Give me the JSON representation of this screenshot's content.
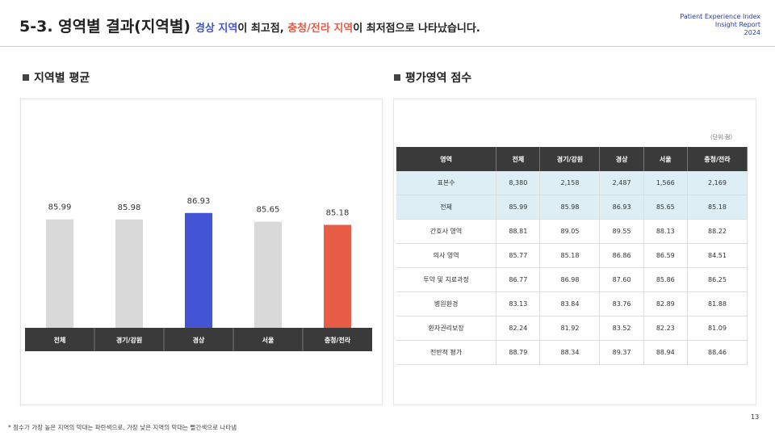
{
  "header": {
    "title": "5-3. 영역별 결과(지역별)",
    "headline": [
      "경상 지역",
      "이 최고점, ",
      "충청/전라 지역",
      "이 최저점으로 나타났습니다."
    ],
    "brand": [
      "Patient Experience Index",
      "Insight Report",
      "2024"
    ]
  },
  "left_section": {
    "title": "지역별 평균"
  },
  "chart_data": {
    "type": "bar",
    "categories": [
      "전체",
      "경기/강원",
      "경상",
      "서울",
      "충청/전라"
    ],
    "values": [
      85.99,
      85.98,
      86.93,
      85.65,
      85.18
    ],
    "colors": [
      "#d9d9d9",
      "#d9d9d9",
      "#4355d4",
      "#d9d9d9",
      "#e85c45"
    ],
    "ylim": [
      70,
      90
    ]
  },
  "right_section": {
    "title": "평가영역 점수",
    "unit": "(단위:점)"
  },
  "table": {
    "columns": [
      "영역",
      "전체",
      "경기/강원",
      "경상",
      "서울",
      "충청/전라"
    ],
    "rows": [
      [
        "표본수",
        "8,380",
        "2,158",
        "2,487",
        "1,566",
        "2,169"
      ],
      [
        "전체",
        "85.99",
        "85.98",
        "86.93",
        "85.65",
        "85.18"
      ],
      [
        "간호사 영역",
        "88.81",
        "89.05",
        "89.55",
        "88.13",
        "88.22"
      ],
      [
        "의사 영역",
        "85.77",
        "85.18",
        "86.86",
        "86.59",
        "84.51"
      ],
      [
        "투약 및 치료과정",
        "86.77",
        "86.98",
        "87.60",
        "85.86",
        "86.25"
      ],
      [
        "병원환경",
        "83.13",
        "83.84",
        "83.76",
        "82.89",
        "81.88"
      ],
      [
        "환자권리보장",
        "82.24",
        "81.92",
        "83.52",
        "82.23",
        "81.09"
      ],
      [
        "전반적 평가",
        "88.79",
        "88.34",
        "89.37",
        "88.94",
        "88.46"
      ]
    ]
  },
  "footnote": "* 점수가 가장 높은 지역의 막대는 파란색으로, 가장 낮은 지역의 막대는 빨간색으로 나타냄",
  "page_number": "13"
}
